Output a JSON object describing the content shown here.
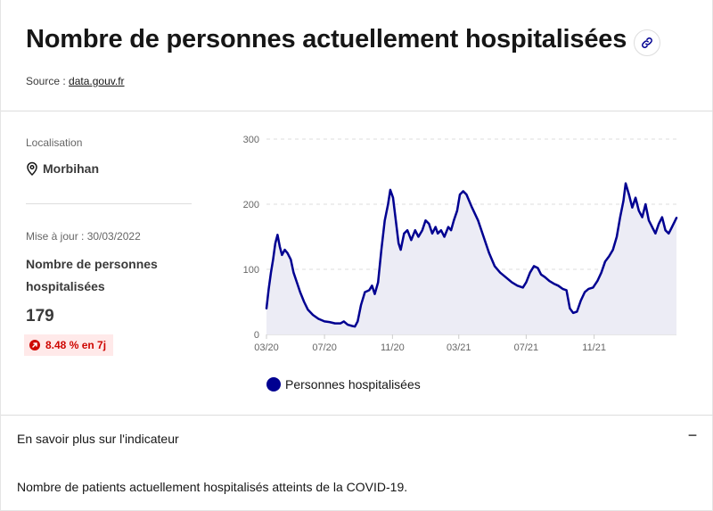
{
  "header": {
    "title": "Nombre de personnes actuellement hospitalisées",
    "source_label": "Source :",
    "source_link": "data.gouv.fr",
    "link_icon": "link-icon"
  },
  "sidebar": {
    "location_label": "Localisation",
    "location_icon": "map-pin-icon",
    "location_value": "Morbihan",
    "update_label": "Mise à jour : 30/03/2022",
    "indicator_name": "Nombre de personnes hospitalisées",
    "current_value": "179",
    "trend_badge": "8.48 % en 7j",
    "trend_icon": "arrow-up-right-icon",
    "trend_color": "#ce0500"
  },
  "accordion": {
    "title": "En savoir plus sur l'indicateur",
    "toggle_symbol": "−",
    "body": "Nombre de patients actuellement hospitalisés atteints de la COVID-19."
  },
  "chart_data": {
    "type": "area",
    "title": "",
    "xlabel": "",
    "ylabel": "",
    "ylim": [
      0,
      300
    ],
    "yticks": [
      0,
      100,
      200,
      300
    ],
    "xlim": [
      "2020-03-18",
      "2022-03-30"
    ],
    "xticks": [
      {
        "date": "2020-03-18",
        "label": "03/20"
      },
      {
        "date": "2020-07-01",
        "label": "07/20"
      },
      {
        "date": "2020-11-01",
        "label": "11/20"
      },
      {
        "date": "2021-03-01",
        "label": "03/21"
      },
      {
        "date": "2021-07-01",
        "label": "07/21"
      },
      {
        "date": "2021-11-01",
        "label": "11/21"
      }
    ],
    "grid": "horizontal dashed",
    "legend": "bottom",
    "line_color": "#000091",
    "fill_color": "#ececf5",
    "series": [
      {
        "name": "Personnes hospitalisées",
        "points": [
          [
            "2020-03-18",
            40
          ],
          [
            "2020-03-22",
            70
          ],
          [
            "2020-03-26",
            95
          ],
          [
            "2020-03-30",
            115
          ],
          [
            "2020-04-03",
            140
          ],
          [
            "2020-04-07",
            153
          ],
          [
            "2020-04-11",
            135
          ],
          [
            "2020-04-15",
            122
          ],
          [
            "2020-04-20",
            130
          ],
          [
            "2020-04-25",
            125
          ],
          [
            "2020-05-01",
            115
          ],
          [
            "2020-05-06",
            95
          ],
          [
            "2020-05-12",
            80
          ],
          [
            "2020-05-18",
            65
          ],
          [
            "2020-05-25",
            50
          ],
          [
            "2020-06-01",
            38
          ],
          [
            "2020-06-10",
            30
          ],
          [
            "2020-06-20",
            24
          ],
          [
            "2020-07-01",
            20
          ],
          [
            "2020-07-10",
            19
          ],
          [
            "2020-07-20",
            17
          ],
          [
            "2020-07-30",
            17
          ],
          [
            "2020-08-05",
            20
          ],
          [
            "2020-08-12",
            15
          ],
          [
            "2020-08-20",
            13
          ],
          [
            "2020-08-25",
            12
          ],
          [
            "2020-08-30",
            20
          ],
          [
            "2020-09-05",
            45
          ],
          [
            "2020-09-12",
            65
          ],
          [
            "2020-09-20",
            68
          ],
          [
            "2020-09-25",
            75
          ],
          [
            "2020-09-30",
            62
          ],
          [
            "2020-10-06",
            80
          ],
          [
            "2020-10-12",
            130
          ],
          [
            "2020-10-18",
            175
          ],
          [
            "2020-10-24",
            200
          ],
          [
            "2020-10-28",
            222
          ],
          [
            "2020-11-02",
            210
          ],
          [
            "2020-11-07",
            175
          ],
          [
            "2020-11-12",
            140
          ],
          [
            "2020-11-16",
            130
          ],
          [
            "2020-11-22",
            155
          ],
          [
            "2020-11-28",
            160
          ],
          [
            "2020-12-05",
            145
          ],
          [
            "2020-12-12",
            160
          ],
          [
            "2020-12-18",
            150
          ],
          [
            "2020-12-25",
            160
          ],
          [
            "2020-12-31",
            175
          ],
          [
            "2021-01-06",
            170
          ],
          [
            "2021-01-12",
            155
          ],
          [
            "2021-01-18",
            165
          ],
          [
            "2021-01-22",
            155
          ],
          [
            "2021-01-28",
            160
          ],
          [
            "2021-02-03",
            150
          ],
          [
            "2021-02-10",
            165
          ],
          [
            "2021-02-15",
            160
          ],
          [
            "2021-02-20",
            175
          ],
          [
            "2021-02-26",
            190
          ],
          [
            "2021-03-03",
            215
          ],
          [
            "2021-03-09",
            220
          ],
          [
            "2021-03-15",
            215
          ],
          [
            "2021-03-25",
            195
          ],
          [
            "2021-04-05",
            175
          ],
          [
            "2021-04-15",
            150
          ],
          [
            "2021-04-25",
            125
          ],
          [
            "2021-05-05",
            105
          ],
          [
            "2021-05-15",
            95
          ],
          [
            "2021-05-25",
            88
          ],
          [
            "2021-06-05",
            80
          ],
          [
            "2021-06-15",
            75
          ],
          [
            "2021-06-25",
            72
          ],
          [
            "2021-07-01",
            80
          ],
          [
            "2021-07-08",
            95
          ],
          [
            "2021-07-15",
            105
          ],
          [
            "2021-07-22",
            102
          ],
          [
            "2021-07-28",
            92
          ],
          [
            "2021-08-04",
            88
          ],
          [
            "2021-08-12",
            82
          ],
          [
            "2021-08-20",
            78
          ],
          [
            "2021-08-28",
            75
          ],
          [
            "2021-09-05",
            70
          ],
          [
            "2021-09-12",
            68
          ],
          [
            "2021-09-18",
            40
          ],
          [
            "2021-09-24",
            33
          ],
          [
            "2021-10-01",
            35
          ],
          [
            "2021-10-08",
            52
          ],
          [
            "2021-10-15",
            65
          ],
          [
            "2021-10-22",
            70
          ],
          [
            "2021-10-30",
            72
          ],
          [
            "2021-11-07",
            82
          ],
          [
            "2021-11-14",
            95
          ],
          [
            "2021-11-21",
            112
          ],
          [
            "2021-11-28",
            120
          ],
          [
            "2021-12-05",
            130
          ],
          [
            "2021-12-12",
            150
          ],
          [
            "2021-12-18",
            180
          ],
          [
            "2021-12-24",
            205
          ],
          [
            "2021-12-28",
            232
          ],
          [
            "2022-01-03",
            215
          ],
          [
            "2022-01-09",
            195
          ],
          [
            "2022-01-15",
            210
          ],
          [
            "2022-01-21",
            190
          ],
          [
            "2022-01-27",
            180
          ],
          [
            "2022-02-02",
            200
          ],
          [
            "2022-02-08",
            175
          ],
          [
            "2022-02-14",
            165
          ],
          [
            "2022-02-20",
            155
          ],
          [
            "2022-02-26",
            170
          ],
          [
            "2022-03-04",
            180
          ],
          [
            "2022-03-10",
            160
          ],
          [
            "2022-03-16",
            155
          ],
          [
            "2022-03-22",
            165
          ],
          [
            "2022-03-26",
            172
          ],
          [
            "2022-03-30",
            179
          ]
        ]
      }
    ]
  }
}
